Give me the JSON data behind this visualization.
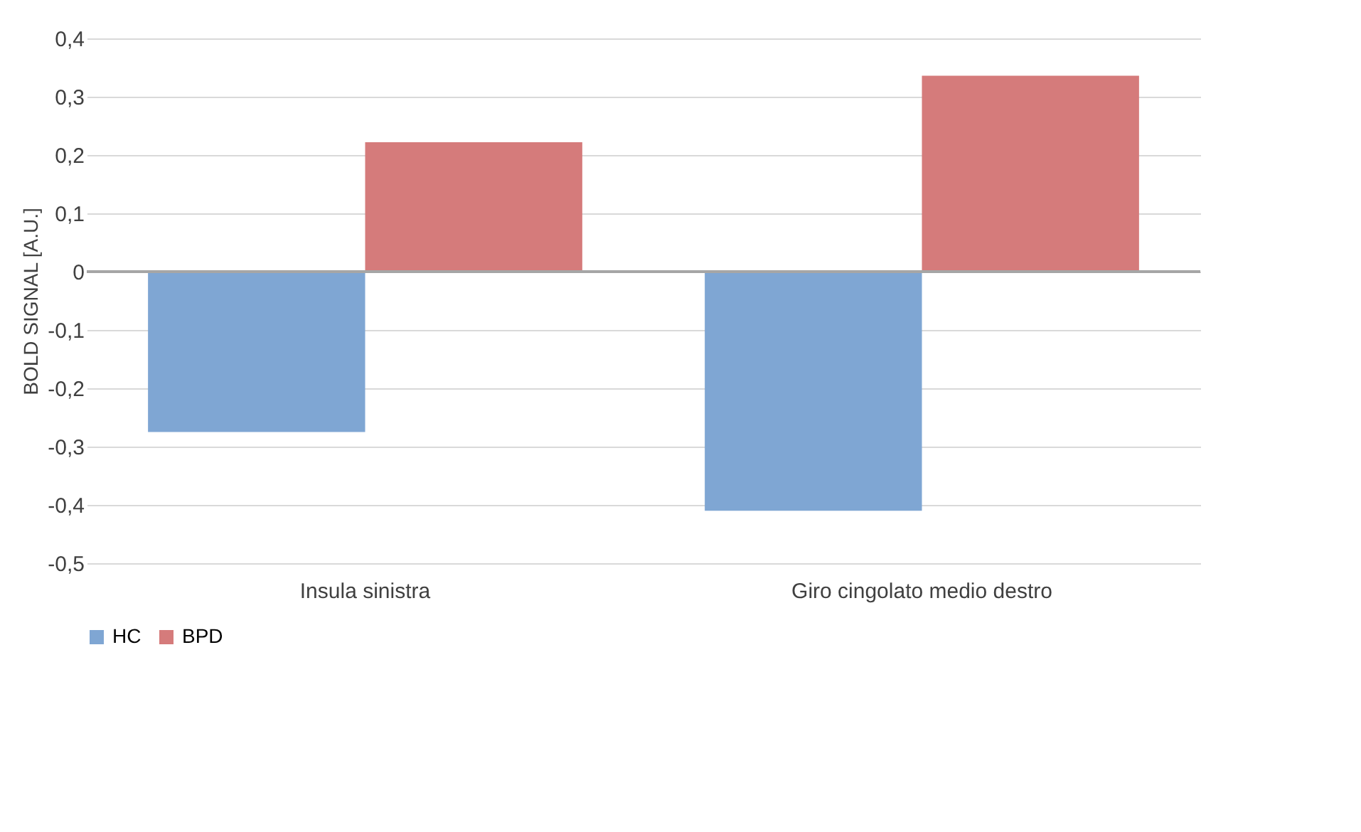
{
  "chart_data": {
    "type": "bar",
    "ylabel": "BOLD SIGNAL [A.U.]",
    "categories": [
      "Insula sinistra",
      "Giro cingolato medio destro"
    ],
    "series": [
      {
        "name": "HC",
        "color": "#7fa6d3",
        "values": [
          -0.275,
          -0.41
        ]
      },
      {
        "name": "BPD",
        "color": "#d57b7b",
        "values": [
          0.222,
          0.336
        ]
      }
    ],
    "ylim": [
      -0.5,
      0.4
    ],
    "yticks": [
      {
        "value": -0.5,
        "label": "-0,5"
      },
      {
        "value": -0.4,
        "label": "-0,4"
      },
      {
        "value": -0.3,
        "label": "-0,3"
      },
      {
        "value": -0.2,
        "label": "-0,2"
      },
      {
        "value": -0.1,
        "label": "-0,1"
      },
      {
        "value": 0,
        "label": "0"
      },
      {
        "value": 0.1,
        "label": "0,1"
      },
      {
        "value": 0.2,
        "label": "0,2"
      },
      {
        "value": 0.3,
        "label": "0,3"
      },
      {
        "value": 0.4,
        "label": "0,4"
      }
    ],
    "grid": "y",
    "legend": "bottom"
  }
}
